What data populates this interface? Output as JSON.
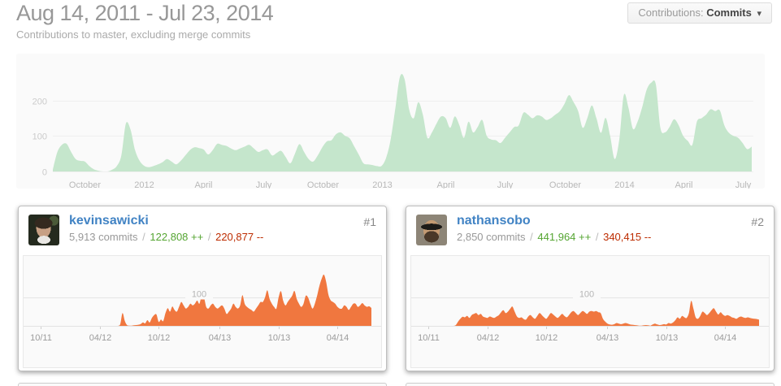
{
  "header": {
    "title": "Aug 14, 2011 - Jul 23, 2014",
    "subtitle": "Contributions to master, excluding merge commits",
    "contributions_dropdown": {
      "label": "Contributions:",
      "value": "Commits",
      "caret": "▾"
    }
  },
  "ui": {
    "separator": "/"
  },
  "colors": {
    "link_blue": "#4183c4",
    "additions_green": "#55a532",
    "deletions_red": "#bd2c00",
    "main_area_green": "#c5e6cc",
    "card_area_orange": "#f0773f"
  },
  "contributors": [
    {
      "rank": "#1",
      "username": "kevinsawicki",
      "commits": "5,913 commits",
      "additions": "122,808 ++",
      "deletions": "220,877 --"
    },
    {
      "rank": "#2",
      "username": "nathansobo",
      "commits": "2,850 commits",
      "additions": "441,964 ++",
      "deletions": "340,415 --"
    }
  ],
  "chart_data": [
    {
      "id": "main",
      "type": "area",
      "title": "Weekly commits to master, all contributors",
      "x_start": "2011-08-14",
      "x_step": "1 week",
      "ylim": [
        0,
        280
      ],
      "grid": "on",
      "color": "#c5e6cc",
      "ygrid": [
        {
          "v": 0,
          "label": "0"
        },
        {
          "v": 100,
          "label": "100"
        },
        {
          "v": 200,
          "label": "200"
        }
      ],
      "xticks": [
        {
          "week": 7,
          "label": "October"
        },
        {
          "week": 20,
          "label": "2012"
        },
        {
          "week": 33,
          "label": "April"
        },
        {
          "week": 46,
          "label": "July"
        },
        {
          "week": 59,
          "label": "October"
        },
        {
          "week": 72,
          "label": "2013"
        },
        {
          "week": 86,
          "label": "April"
        },
        {
          "week": 99,
          "label": "July"
        },
        {
          "week": 112,
          "label": "October"
        },
        {
          "week": 125,
          "label": "2014"
        },
        {
          "week": 138,
          "label": "April"
        },
        {
          "week": 151,
          "label": "July"
        }
      ],
      "values": [
        5,
        55,
        75,
        78,
        55,
        35,
        30,
        28,
        15,
        6,
        2,
        0,
        0,
        5,
        15,
        45,
        135,
        118,
        60,
        30,
        16,
        12,
        15,
        20,
        26,
        35,
        28,
        20,
        30,
        45,
        60,
        68,
        66,
        62,
        48,
        60,
        78,
        75,
        72,
        65,
        60,
        65,
        70,
        75,
        65,
        55,
        60,
        62,
        45,
        52,
        58,
        40,
        23,
        50,
        77,
        55,
        35,
        28,
        45,
        68,
        85,
        88,
        105,
        110,
        100,
        93,
        70,
        47,
        23,
        20,
        18,
        15,
        16,
        40,
        93,
        180,
        267,
        260,
        175,
        150,
        195,
        160,
        95,
        110,
        135,
        155,
        150,
        123,
        155,
        130,
        95,
        140,
        110,
        125,
        145,
        100,
        90,
        88,
        80,
        95,
        110,
        125,
        130,
        165,
        160,
        150,
        158,
        155,
        145,
        150,
        160,
        170,
        190,
        215,
        195,
        170,
        123,
        150,
        186,
        150,
        109,
        151,
        100,
        35,
        90,
        215,
        180,
        120,
        140,
        180,
        230,
        250,
        245,
        123,
        110,
        125,
        147,
        130,
        100,
        86,
        75,
        140,
        150,
        160,
        175,
        170,
        172,
        130,
        109,
        100,
        95,
        80,
        63,
        70
      ]
    },
    {
      "id": "kevinsawicki",
      "type": "area",
      "title": "Weekly commits by kevinsawicki",
      "x_start": "2011-08-14",
      "x_step": "1 week",
      "ylim": [
        0,
        240
      ],
      "grid": "on",
      "color": "#f0773f",
      "ygrid": [
        {
          "v": 100,
          "label": "100"
        }
      ],
      "xticks": [
        {
          "week": 7,
          "label": "10/11"
        },
        {
          "week": 33,
          "label": "04/12"
        },
        {
          "week": 59,
          "label": "10/12"
        },
        {
          "week": 86,
          "label": "04/13"
        },
        {
          "week": 112,
          "label": "10/13"
        },
        {
          "week": 138,
          "label": "04/14"
        }
      ],
      "values": [
        0,
        0,
        0,
        0,
        0,
        0,
        0,
        0,
        0,
        0,
        0,
        0,
        0,
        0,
        0,
        0,
        0,
        0,
        0,
        0,
        0,
        0,
        0,
        0,
        0,
        0,
        0,
        0,
        0,
        0,
        0,
        0,
        0,
        0,
        0,
        0,
        0,
        0,
        0,
        0,
        0,
        0,
        5,
        45,
        18,
        3,
        1,
        1,
        2,
        3,
        4,
        6,
        12,
        9,
        20,
        12,
        28,
        38,
        40,
        14,
        22,
        17,
        45,
        62,
        50,
        68,
        56,
        50,
        67,
        84,
        72,
        61,
        67,
        78,
        72,
        78,
        89,
        78,
        106,
        100,
        67,
        61,
        72,
        78,
        67,
        61,
        67,
        72,
        61,
        42,
        50,
        61,
        78,
        67,
        61,
        72,
        108,
        78,
        67,
        61,
        56,
        50,
        61,
        72,
        84,
        84,
        100,
        125,
        95,
        78,
        67,
        61,
        100,
        122,
        89,
        72,
        84,
        95,
        106,
        123,
        95,
        78,
        67,
        78,
        106,
        100,
        78,
        61,
        78,
        106,
        140,
        165,
        180,
        155,
        110,
        90,
        84,
        78,
        67,
        61,
        61,
        72,
        67,
        56,
        67,
        78,
        78,
        67,
        72,
        80,
        72,
        67,
        69,
        63
      ]
    },
    {
      "id": "nathansobo",
      "type": "area",
      "title": "Weekly commits by nathansobo",
      "x_start": "2011-08-14",
      "x_step": "1 week",
      "ylim": [
        0,
        240
      ],
      "grid": "on",
      "color": "#f0773f",
      "ygrid": [
        {
          "v": 100,
          "label": "100"
        }
      ],
      "xticks": [
        {
          "week": 7,
          "label": "10/11"
        },
        {
          "week": 33,
          "label": "04/12"
        },
        {
          "week": 59,
          "label": "10/12"
        },
        {
          "week": 86,
          "label": "04/13"
        },
        {
          "week": 112,
          "label": "10/13"
        },
        {
          "week": 138,
          "label": "04/14"
        }
      ],
      "values": [
        0,
        0,
        0,
        0,
        0,
        0,
        0,
        0,
        0,
        0,
        0,
        0,
        0,
        0,
        0,
        0,
        0,
        0,
        0,
        3,
        15,
        25,
        32,
        30,
        35,
        28,
        38,
        42,
        45,
        38,
        42,
        33,
        30,
        28,
        33,
        30,
        28,
        33,
        38,
        48,
        55,
        45,
        50,
        60,
        68,
        50,
        33,
        28,
        30,
        24,
        22,
        33,
        38,
        30,
        25,
        35,
        45,
        38,
        30,
        25,
        35,
        45,
        40,
        33,
        28,
        35,
        42,
        35,
        30,
        38,
        48,
        52,
        45,
        38,
        45,
        52,
        48,
        42,
        50,
        52,
        50,
        52,
        48,
        45,
        25,
        15,
        8,
        5,
        4,
        6,
        10,
        8,
        6,
        8,
        10,
        8,
        5,
        4,
        3,
        2,
        1,
        1,
        2,
        3,
        2,
        1,
        5,
        8,
        5,
        3,
        4,
        6,
        5,
        10,
        8,
        12,
        20,
        30,
        25,
        35,
        30,
        28,
        45,
        88,
        60,
        30,
        25,
        35,
        50,
        45,
        38,
        45,
        55,
        62,
        50,
        40,
        48,
        40,
        35,
        38,
        35,
        30,
        28,
        25,
        30,
        33,
        30,
        28,
        30,
        28,
        26,
        25,
        24,
        22
      ]
    }
  ]
}
